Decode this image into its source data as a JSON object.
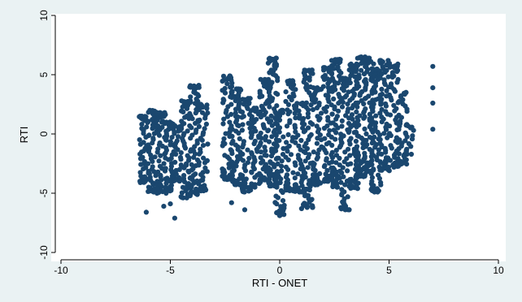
{
  "chart_data": {
    "type": "scatter",
    "title": "",
    "xlabel": "RTI - ONET",
    "ylabel": "RTI",
    "xlim": [
      -10,
      10
    ],
    "ylim": [
      -10,
      10
    ],
    "xticks": [
      "-10",
      "-5",
      "0",
      "5",
      "10"
    ],
    "yticks": [
      "-10",
      "-5",
      "0",
      "5",
      "10"
    ],
    "grid": false,
    "legend": "none",
    "marker_color": "#1a476f",
    "clusters": [
      {
        "x": -6.2,
        "ymin": -4.1,
        "ymax": 1.5,
        "n": 16
      },
      {
        "x": -5.8,
        "ymin": -4.9,
        "ymax": 2.0,
        "n": 18
      },
      {
        "x": -5.4,
        "ymin": -5.0,
        "ymax": 1.8,
        "n": 18
      },
      {
        "x": -5.0,
        "ymin": -4.8,
        "ymax": 1.0,
        "n": 14
      },
      {
        "x": -4.7,
        "ymin": -4.0,
        "ymax": 0.7,
        "n": 12
      },
      {
        "x": -4.3,
        "ymin": -5.4,
        "ymax": 2.8,
        "n": 20
      },
      {
        "x": -3.9,
        "ymin": -5.1,
        "ymax": 4.1,
        "n": 22
      },
      {
        "x": -3.5,
        "ymin": -4.8,
        "ymax": 2.5,
        "n": 16
      },
      {
        "x": -2.4,
        "ymin": -3.9,
        "ymax": 4.9,
        "n": 22
      },
      {
        "x": -2.0,
        "ymin": -4.3,
        "ymax": 3.8,
        "n": 22
      },
      {
        "x": -1.5,
        "ymin": -4.9,
        "ymax": 3.0,
        "n": 18
      },
      {
        "x": -1.1,
        "ymin": -4.5,
        "ymax": 2.2,
        "n": 16
      },
      {
        "x": -0.7,
        "ymin": -3.9,
        "ymax": 4.6,
        "n": 22
      },
      {
        "x": -0.3,
        "ymin": -4.4,
        "ymax": 6.4,
        "n": 30
      },
      {
        "x": 0.0,
        "ymin": -6.8,
        "ymax": 2.0,
        "n": 18
      },
      {
        "x": 0.5,
        "ymin": -4.8,
        "ymax": 4.5,
        "n": 20
      },
      {
        "x": 0.9,
        "ymin": -4.9,
        "ymax": 2.6,
        "n": 16
      },
      {
        "x": 1.3,
        "ymin": -6.2,
        "ymax": 5.4,
        "n": 24
      },
      {
        "x": 1.7,
        "ymin": -4.3,
        "ymax": 3.9,
        "n": 18
      },
      {
        "x": 2.2,
        "ymin": -4.0,
        "ymax": 5.6,
        "n": 22
      },
      {
        "x": 2.6,
        "ymin": -4.5,
        "ymax": 6.3,
        "n": 26
      },
      {
        "x": 3.0,
        "ymin": -6.4,
        "ymax": 4.7,
        "n": 22
      },
      {
        "x": 3.4,
        "ymin": -4.6,
        "ymax": 5.9,
        "n": 24
      },
      {
        "x": 3.7,
        "ymin": -3.6,
        "ymax": 6.5,
        "n": 28
      },
      {
        "x": 4.1,
        "ymin": -3.2,
        "ymax": 6.4,
        "n": 26
      },
      {
        "x": 4.4,
        "ymin": -4.9,
        "ymax": 5.5,
        "n": 24
      },
      {
        "x": 4.8,
        "ymin": -3.1,
        "ymax": 6.2,
        "n": 22
      },
      {
        "x": 5.2,
        "ymin": -2.8,
        "ymax": 5.8,
        "n": 18
      },
      {
        "x": 5.6,
        "ymin": -2.6,
        "ymax": 3.5,
        "n": 12
      },
      {
        "x": 5.9,
        "ymin": -1.8,
        "ymax": 0.8,
        "n": 6
      }
    ],
    "points": [
      {
        "x": -4.8,
        "y": -7.1
      },
      {
        "x": -6.1,
        "y": -6.6
      },
      {
        "x": -5.3,
        "y": -6.1
      },
      {
        "x": -5.0,
        "y": -5.9
      },
      {
        "x": -2.2,
        "y": -5.8
      },
      {
        "x": -1.6,
        "y": -6.4
      },
      {
        "x": 0.0,
        "y": -6.9
      },
      {
        "x": 0.1,
        "y": -6.6
      },
      {
        "x": 1.0,
        "y": -6.3
      },
      {
        "x": 3.0,
        "y": -6.4
      },
      {
        "x": 5.4,
        "y": 5.9
      },
      {
        "x": 7.0,
        "y": 5.7
      },
      {
        "x": 7.0,
        "y": 3.9
      },
      {
        "x": 7.0,
        "y": 2.6
      },
      {
        "x": 7.0,
        "y": 0.4
      }
    ]
  }
}
